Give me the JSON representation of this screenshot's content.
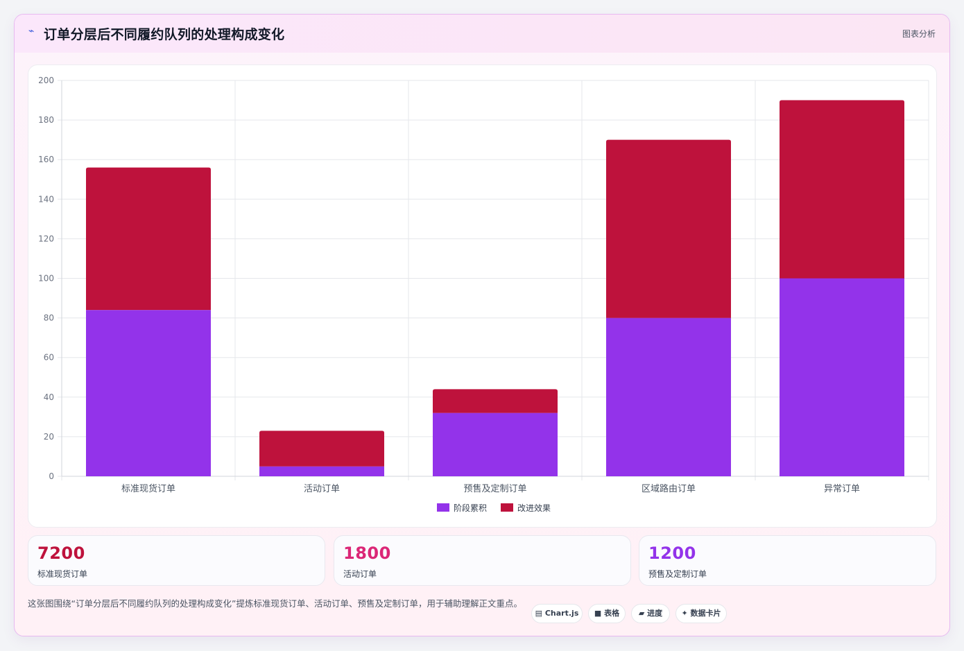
{
  "header": {
    "icon": "trend-icon",
    "title": "订单分层后不同履约队列的处理构成变化",
    "badge": "图表分析"
  },
  "chart_data": {
    "type": "bar",
    "stacked": true,
    "categories": [
      "标准现货订单",
      "活动订单",
      "预售及定制订单",
      "区域路由订单",
      "异常订单"
    ],
    "series": [
      {
        "name": "阶段累积",
        "color": "#9333ea",
        "values": [
          84,
          5,
          32,
          80,
          100
        ]
      },
      {
        "name": "改进效果",
        "color": "#be123c",
        "values": [
          72,
          18,
          12,
          90,
          90
        ]
      }
    ],
    "ylim": [
      0,
      200
    ],
    "yticks": [
      0,
      20,
      40,
      60,
      80,
      100,
      120,
      140,
      160,
      180,
      200
    ],
    "grid": true,
    "legend_position": "bottom"
  },
  "stats": [
    {
      "value": "7200",
      "label": "标准现货订单",
      "color": "#be123c"
    },
    {
      "value": "1800",
      "label": "活动订单",
      "color": "#db2777"
    },
    {
      "value": "1200",
      "label": "预售及定制订单",
      "color": "#9333ea"
    }
  ],
  "footnote": "这张图围绕“订单分层后不同履约队列的处理构成变化”提炼标准现货订单、活动订单、预售及定制订单，用于辅助理解正文重点。",
  "tags": [
    {
      "icon": "chart-icon",
      "glyph": "▤",
      "label": "Chart.js"
    },
    {
      "icon": "table-icon",
      "glyph": "■",
      "label": "表格"
    },
    {
      "icon": "progress-icon",
      "glyph": "▰",
      "label": "进度"
    },
    {
      "icon": "sparkle-icon",
      "glyph": "✦",
      "label": "数据卡片"
    }
  ]
}
